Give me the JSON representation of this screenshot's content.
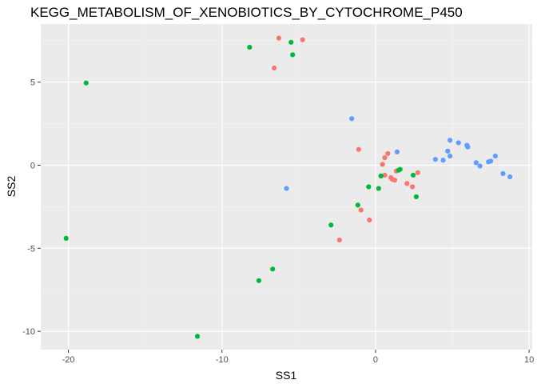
{
  "chart_data": {
    "type": "scatter",
    "title": "KEGG_METABOLISM_OF_XENOBIOTICS_BY_CYTOCHROME_P450",
    "xlabel": "SS1",
    "ylabel": "SS2",
    "xlim": [
      -21.8,
      10.2
    ],
    "ylim": [
      -11.1,
      8.5
    ],
    "x_ticks": [
      -20,
      -10,
      0,
      10
    ],
    "x_tick_labels": [
      "-20",
      "-10",
      "0",
      "10"
    ],
    "y_ticks": [
      -10,
      -5,
      0,
      5
    ],
    "y_tick_labels": [
      "-10",
      "-5",
      "0",
      "5"
    ],
    "grid": true,
    "legend": "none",
    "series": [
      {
        "color": "#F8766D",
        "points": [
          [
            -6.3,
            7.65
          ],
          [
            -4.75,
            7.55
          ],
          [
            -6.6,
            5.85
          ],
          [
            -1.1,
            0.95
          ],
          [
            0.8,
            0.7
          ],
          [
            0.6,
            0.45
          ],
          [
            0.45,
            0.05
          ],
          [
            0.6,
            -0.6
          ],
          [
            1.0,
            -0.75
          ],
          [
            1.1,
            -0.85
          ],
          [
            1.25,
            -0.9
          ],
          [
            1.35,
            -0.35
          ],
          [
            2.05,
            -1.1
          ],
          [
            2.4,
            -1.3
          ],
          [
            2.75,
            -0.45
          ],
          [
            -0.95,
            -2.7
          ],
          [
            -0.4,
            -3.3
          ],
          [
            -2.35,
            -4.5
          ]
        ]
      },
      {
        "color": "#00BA38",
        "points": [
          [
            -5.5,
            7.4
          ],
          [
            -8.2,
            7.1
          ],
          [
            -5.4,
            6.65
          ],
          [
            -18.85,
            4.95
          ],
          [
            1.5,
            -0.3
          ],
          [
            1.6,
            -0.25
          ],
          [
            0.35,
            -0.65
          ],
          [
            2.45,
            -0.6
          ],
          [
            -0.45,
            -1.3
          ],
          [
            0.2,
            -1.4
          ],
          [
            2.65,
            -1.9
          ],
          [
            -1.15,
            -2.4
          ],
          [
            -2.9,
            -3.6
          ],
          [
            -20.15,
            -4.4
          ],
          [
            -6.7,
            -6.25
          ],
          [
            -7.6,
            -6.95
          ],
          [
            -11.6,
            -10.3
          ]
        ]
      },
      {
        "color": "#619CFF",
        "points": [
          [
            -1.55,
            2.8
          ],
          [
            -5.8,
            -1.4
          ],
          [
            1.4,
            0.8
          ],
          [
            3.9,
            0.35
          ],
          [
            4.4,
            0.3
          ],
          [
            4.7,
            0.85
          ],
          [
            4.85,
            0.55
          ],
          [
            4.85,
            1.5
          ],
          [
            5.4,
            1.35
          ],
          [
            5.95,
            1.2
          ],
          [
            6.0,
            1.1
          ],
          [
            6.55,
            0.15
          ],
          [
            6.8,
            -0.05
          ],
          [
            7.35,
            0.2
          ],
          [
            7.5,
            0.25
          ],
          [
            7.8,
            0.55
          ],
          [
            8.3,
            -0.5
          ],
          [
            8.75,
            -0.7
          ]
        ]
      }
    ]
  }
}
